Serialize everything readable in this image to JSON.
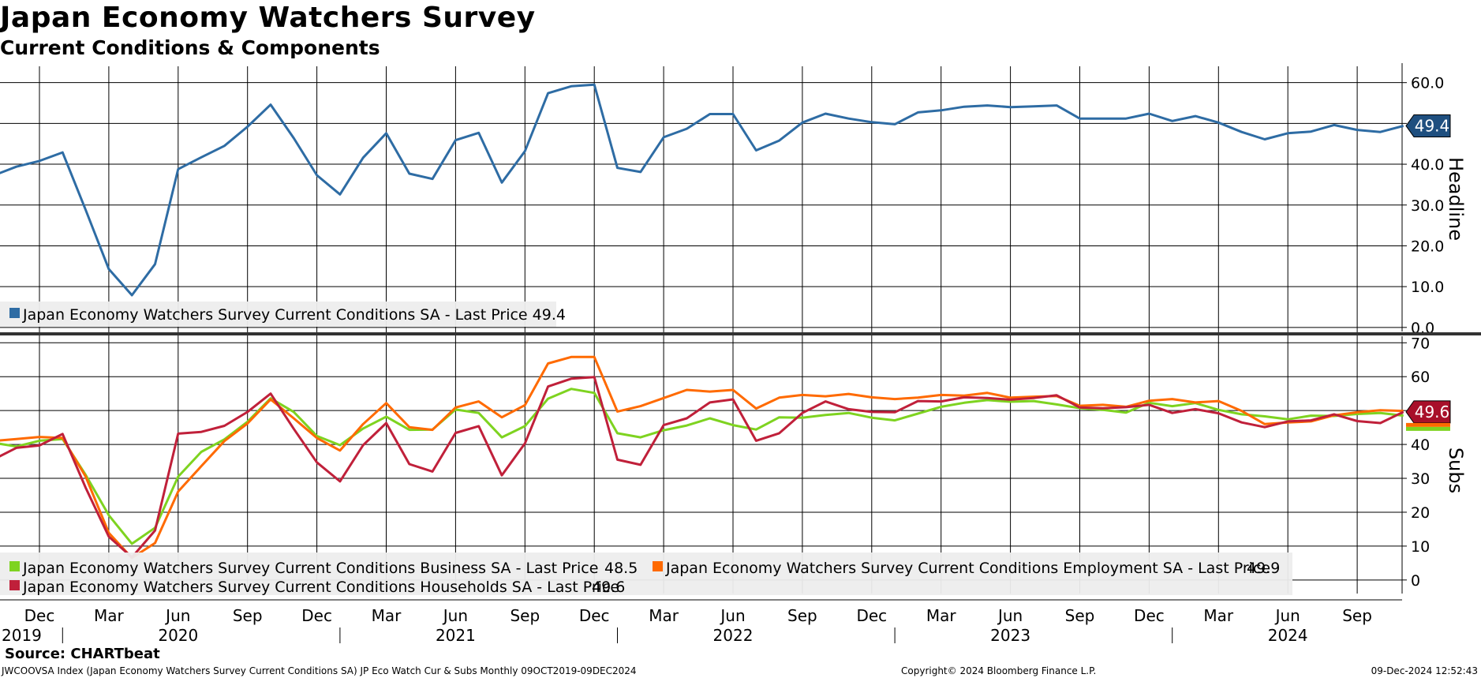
{
  "title": "Japan Economy Watchers Survey",
  "subtitle": "Current Conditions & Components",
  "footer": {
    "source": "Source: CHARTbeat",
    "description": "JWCOOVSA Index (Japan Economy Watchers Survey Current Conditions SA) JP Eco Watch Cur & Subs  Monthly 09OCT2019-09DEC2024",
    "copyright": "Copyright© 2024 Bloomberg Finance L.P.",
    "timestamp": "09-Dec-2024 12:52:43"
  },
  "x_axis": {
    "month_labels": [
      {
        "label": "Dec",
        "index": 2
      },
      {
        "label": "Mar",
        "index": 5
      },
      {
        "label": "Jun",
        "index": 8
      },
      {
        "label": "Sep",
        "index": 11
      },
      {
        "label": "Dec",
        "index": 14
      },
      {
        "label": "Mar",
        "index": 17
      },
      {
        "label": "Jun",
        "index": 20
      },
      {
        "label": "Sep",
        "index": 23
      },
      {
        "label": "Dec",
        "index": 26
      },
      {
        "label": "Mar",
        "index": 29
      },
      {
        "label": "Jun",
        "index": 32
      },
      {
        "label": "Sep",
        "index": 35
      },
      {
        "label": "Dec",
        "index": 38
      },
      {
        "label": "Mar",
        "index": 41
      },
      {
        "label": "Jun",
        "index": 44
      },
      {
        "label": "Sep",
        "index": 47
      },
      {
        "label": "Dec",
        "index": 50
      },
      {
        "label": "Mar",
        "index": 53
      },
      {
        "label": "Jun",
        "index": 56
      },
      {
        "label": "Sep",
        "index": 59
      }
    ],
    "year_labels": [
      {
        "label": "2019",
        "index": 0
      },
      {
        "label": "2020",
        "index": 8
      },
      {
        "label": "2021",
        "index": 20
      },
      {
        "label": "2022",
        "index": 32
      },
      {
        "label": "2023",
        "index": 44
      },
      {
        "label": "2024",
        "index": 56
      }
    ]
  },
  "chart_data": [
    {
      "type": "line",
      "name": "headline-panel",
      "ylabel": "Headline",
      "ylim": [
        -1,
        64
      ],
      "yticks": [
        "0.0",
        "10.0",
        "20.0",
        "30.0",
        "40.0",
        "50.0",
        "60.0"
      ],
      "ytick_values": [
        0,
        10,
        20,
        30,
        40,
        50,
        60
      ],
      "x_start": "Oct 2019",
      "last_value_label": "49.4",
      "series": [
        {
          "name": "Japan Economy Watchers Survey Current Conditions SA - Last Price 49.4",
          "color": "#2e6ca4",
          "values": [
            37.2,
            39.4,
            40.8,
            42.9,
            28.8,
            14.3,
            7.9,
            15.5,
            38.8,
            41.7,
            44.5,
            49.2,
            54.6,
            46.4,
            37.3,
            32.6,
            41.6,
            47.6,
            37.7,
            36.4,
            45.9,
            47.7,
            35.5,
            43.2,
            57.4,
            59.1,
            59.5,
            39.1,
            38.1,
            46.6,
            48.7,
            52.3,
            52.3,
            43.4,
            45.8,
            50.2,
            52.4,
            51.2,
            50.3,
            49.8,
            52.7,
            53.2,
            54.1,
            54.4,
            54.0,
            54.2,
            54.4,
            51.2,
            51.2,
            51.2,
            52.4,
            50.6,
            51.8,
            50.2,
            47.9,
            46.1,
            47.6,
            48.0,
            49.6,
            48.4,
            47.9,
            49.4
          ]
        }
      ]
    },
    {
      "type": "line",
      "name": "subs-panel",
      "ylabel": "Subs",
      "ylim": [
        -4,
        71
      ],
      "yticks": [
        "0",
        "10",
        "20",
        "30",
        "40",
        "50",
        "60",
        "70"
      ],
      "ytick_values": [
        0,
        10,
        20,
        30,
        40,
        50,
        60,
        70
      ],
      "x_start": "Oct 2019",
      "last_value_label": "49.6",
      "series": [
        {
          "name": "Japan Economy Watchers Survey Current Conditions Business SA - Last Price",
          "legend_value": "48.5",
          "color": "#7ed320",
          "values": [
            40.5,
            39.4,
            41.1,
            41.6,
            31.0,
            19.1,
            10.7,
            15.4,
            30.5,
            37.8,
            41.5,
            46.7,
            53.6,
            49.6,
            42.5,
            39.8,
            44.7,
            48.2,
            44.3,
            44.4,
            50.3,
            49.3,
            42.1,
            45.4,
            53.5,
            56.4,
            55.2,
            43.3,
            42.1,
            44.2,
            45.6,
            47.7,
            45.7,
            44.4,
            48.0,
            47.9,
            48.7,
            49.3,
            47.9,
            47.1,
            49.1,
            51.1,
            52.3,
            53.1,
            52.6,
            52.8,
            51.8,
            50.7,
            50.2,
            49.4,
            52.3,
            51.3,
            52.2,
            50.2,
            48.9,
            48.3,
            47.4,
            48.5,
            48.4,
            49.0,
            49.3,
            48.5
          ]
        },
        {
          "name": "Japan Economy Watchers Survey Current Conditions Employment SA - Last Price",
          "legend_value": "49.9",
          "color": "#ff6a00",
          "values": [
            41.0,
            41.6,
            42.2,
            41.9,
            30.5,
            13.9,
            6.5,
            10.9,
            26.1,
            33.6,
            41.0,
            46.2,
            53.3,
            47.7,
            41.9,
            38.2,
            46.0,
            52.2,
            45.1,
            44.3,
            50.9,
            52.7,
            48.0,
            51.6,
            63.9,
            65.8,
            65.8,
            49.7,
            51.3,
            53.7,
            56.1,
            55.6,
            56.1,
            50.6,
            53.8,
            54.6,
            54.2,
            54.9,
            53.9,
            53.4,
            53.8,
            54.6,
            54.4,
            55.2,
            53.8,
            54.1,
            54.3,
            51.4,
            51.7,
            51.1,
            52.9,
            53.4,
            52.4,
            52.8,
            49.9,
            46.0,
            46.5,
            46.8,
            48.6,
            49.5,
            50.1,
            49.9
          ]
        },
        {
          "name": "Japan Economy Watchers Survey Current Conditions Households SA - Last Price",
          "legend_value": "49.6",
          "color": "#c0203a",
          "values": [
            35.5,
            39.0,
            39.7,
            43.1,
            27.2,
            12.8,
            6.7,
            14.6,
            43.2,
            43.7,
            45.5,
            49.6,
            55.0,
            44.6,
            34.7,
            29.1,
            39.8,
            46.3,
            34.2,
            32.0,
            43.4,
            45.4,
            30.9,
            40.3,
            57.1,
            59.4,
            59.9,
            35.5,
            34.0,
            45.7,
            47.7,
            52.4,
            53.3,
            41.1,
            43.3,
            49.3,
            52.7,
            50.4,
            49.6,
            49.5,
            52.8,
            52.7,
            53.9,
            53.7,
            53.2,
            53.7,
            54.5,
            50.9,
            50.7,
            51.0,
            51.7,
            49.3,
            50.4,
            49.2,
            46.5,
            45.1,
            46.8,
            47.1,
            48.9,
            46.9,
            46.3,
            49.6
          ]
        }
      ]
    }
  ]
}
